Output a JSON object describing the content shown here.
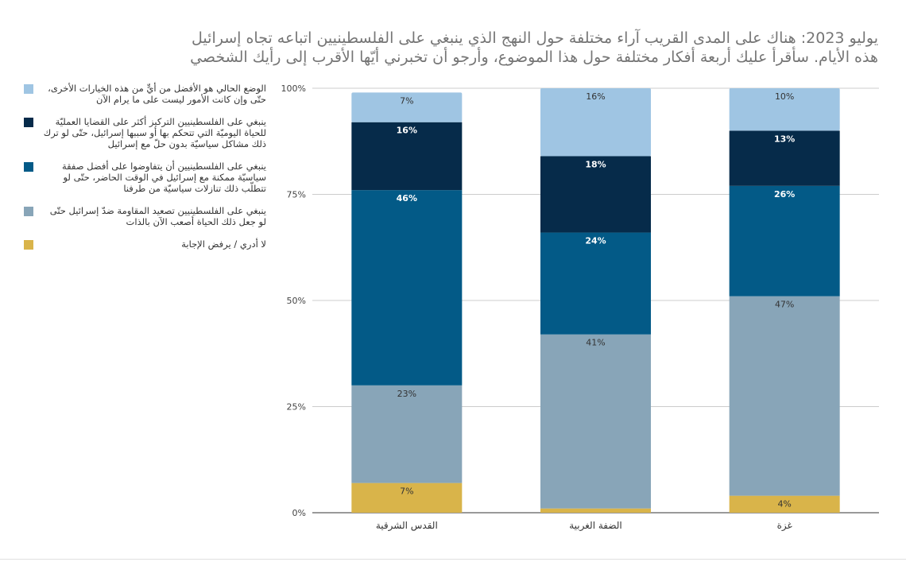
{
  "title": {
    "line1": "يوليو 2023: هناك على المدى القريب آراء مختلفة حول النهج الذي ينبغي على الفلسطينيين اتباعه تجاه إسرائيل",
    "line2": "هذه الأيام. سأقرأ عليك أربعة أفكار مختلفة حول هذا الموضوع، وأرجو أن تخبرني أيّها الأقرب إلى رأيك الشخصي"
  },
  "legend": [
    {
      "label": "الوضع الحالي هو الأفضل من أيٍّ من هذه الخيارات الأخرى، حتّى وإن كانت الأمور ليست على ما يرام الآن",
      "color": "#9fc5e3"
    },
    {
      "label": "ينبغي على الفلسطينيين التركيز أكثر على القضايا العمليّة للحياة اليوميّة التي تتحكم بها أو سببها إسرائيل، حتّى لو ترك ذلك مشاكل سياسيّة بدون حلّ مع إسرائيل",
      "color": "#062b4a"
    },
    {
      "label": "ينبغي على الفلسطينيين أن يتفاوضوا على أفضل صفقة سياسيّة ممكنة مع إسرائيل في الوقت الحاضر، حتّى لو تتطلّب ذلك تنازلات سياسيّة من طرفنا",
      "color": "#035a87"
    },
    {
      "label": "ينبغي على الفلسطينيين تصعيد المقاومة ضدّ إسرائيل حتّى لو جعل ذلك الحياة أصعب الآن بالذات",
      "color": "#88a5b8"
    },
    {
      "label": "لا أدري / يرفض الإجابة",
      "color": "#d9b44a"
    }
  ],
  "chart_data": {
    "type": "bar",
    "stacked": true,
    "categories": [
      "القدس الشرقية",
      "الضفة الغربية",
      "غزة"
    ],
    "series": [
      {
        "name": "لا أدري / يرفض الإجابة",
        "color": "#d9b44a",
        "values": [
          7,
          1,
          4
        ],
        "labels": [
          "7%",
          "",
          "4%"
        ],
        "label_color": "#333333"
      },
      {
        "name": "ينبغي على الفلسطينيين تصعيد المقاومة ضدّ إسرائيل حتّى لو جعل ذلك الحياة أصعب الآن بالذات",
        "color": "#88a5b8",
        "values": [
          23,
          41,
          47
        ],
        "labels": [
          "23%",
          "41%",
          "47%"
        ],
        "label_color": "#333333"
      },
      {
        "name": "ينبغي على الفلسطينيين أن يتفاوضوا على أفضل صفقة سياسيّة ممكنة مع إسرائيل في الوقت الحاضر، حتّى لو تتطلّب ذلك تنازلات سياسيّة من طرفنا",
        "color": "#035a87",
        "values": [
          46,
          24,
          26
        ],
        "labels": [
          "46%",
          "24%",
          "26%"
        ],
        "label_color": "#ffffff"
      },
      {
        "name": "ينبغي على الفلسطينيين التركيز أكثر على القضايا العمليّة للحياة اليوميّة التي تتحكم بها أو سببها إسرائيل، حتّى لو ترك ذلك مشاكل سياسيّة بدون حلّ مع إسرائيل",
        "color": "#062b4a",
        "values": [
          16,
          18,
          13
        ],
        "labels": [
          "16%",
          "18%",
          "13%"
        ],
        "label_color": "#ffffff"
      },
      {
        "name": "الوضع الحالي هو الأفضل من أيٍّ من هذه الخيارات الأخرى، حتّى وإن كانت الأمور ليست على ما يرام الآن",
        "color": "#9fc5e3",
        "values": [
          7,
          16,
          10
        ],
        "labels": [
          "7%",
          "16%",
          "10%"
        ],
        "label_color": "#333333"
      }
    ],
    "ylim": [
      0,
      100
    ],
    "yticks": [
      "0%",
      "25%",
      "50%",
      "75%",
      "100%"
    ],
    "grid": true,
    "legend_position": "left"
  }
}
